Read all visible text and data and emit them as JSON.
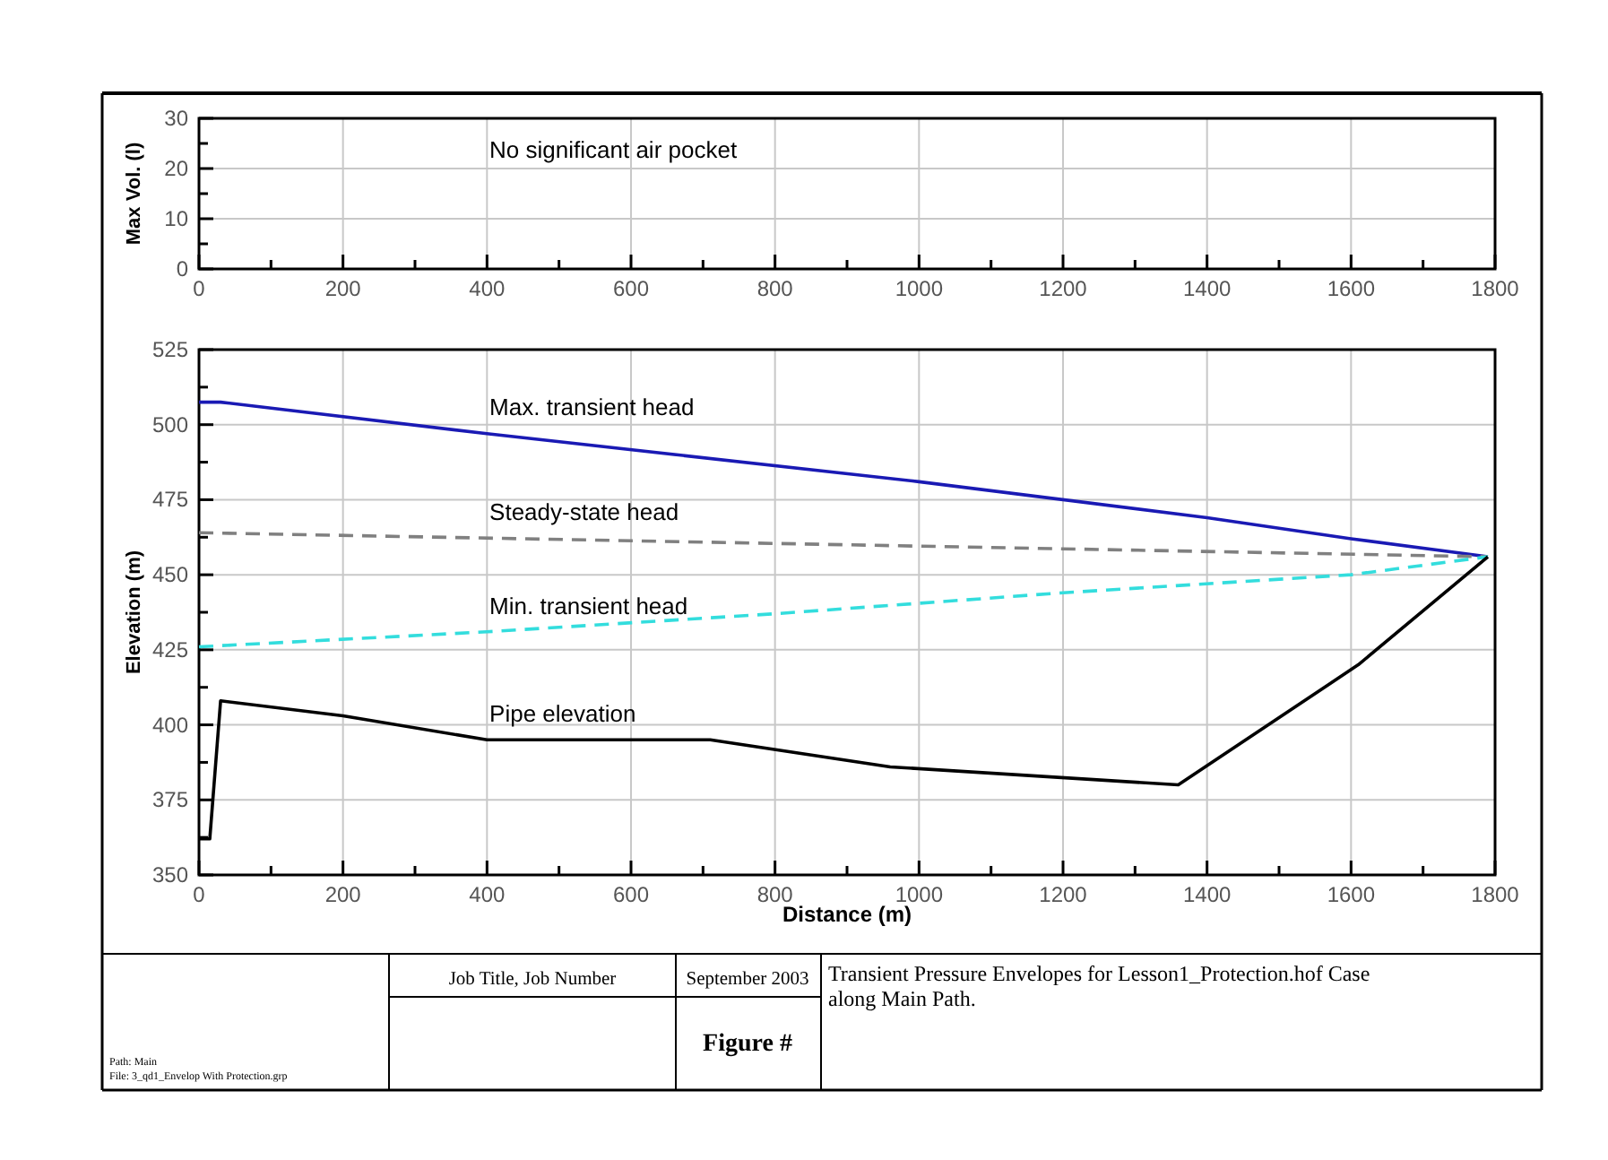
{
  "chart_data": [
    {
      "type": "line",
      "ylabel": "Max Vol. (l)",
      "xlim": [
        0,
        1800
      ],
      "ylim": [
        0,
        30
      ],
      "xticks": [
        0,
        {
          "value": 100,
          "label": null
        },
        200,
        {
          "value": 300,
          "label": null
        },
        400,
        {
          "value": 500,
          "label": null
        },
        600,
        {
          "value": 700,
          "label": null
        },
        800,
        {
          "value": 900,
          "label": null
        },
        1000,
        {
          "value": 1100,
          "label": null
        },
        1200,
        {
          "value": 1300,
          "label": null
        },
        1400,
        {
          "value": 1500,
          "label": null
        },
        1600,
        {
          "value": 1700,
          "label": null
        },
        1800
      ],
      "yticks": [
        0,
        {
          "value": 5,
          "label": null
        },
        10,
        {
          "value": 15,
          "label": null
        },
        20,
        {
          "value": 25,
          "label": null
        },
        30
      ],
      "grid": true,
      "annotations": [
        "No significant air pocket"
      ]
    },
    {
      "type": "line",
      "xlabel": "Distance (m)",
      "ylabel": "Elevation (m)",
      "xlim": [
        0,
        1800
      ],
      "ylim": [
        350,
        525
      ],
      "xticks": [
        0,
        {
          "value": 100,
          "label": null
        },
        200,
        {
          "value": 300,
          "label": null
        },
        400,
        {
          "value": 500,
          "label": null
        },
        600,
        {
          "value": 700,
          "label": null
        },
        800,
        {
          "value": 900,
          "label": null
        },
        1000,
        {
          "value": 1100,
          "label": null
        },
        1200,
        {
          "value": 1300,
          "label": null
        },
        1400,
        {
          "value": 1500,
          "label": null
        },
        1600,
        {
          "value": 1700,
          "label": null
        },
        1800
      ],
      "yticks": [
        350,
        {
          "value": 362.5,
          "label": null
        },
        375,
        {
          "value": 387.5,
          "label": null
        },
        400,
        {
          "value": 412.5,
          "label": null
        },
        425,
        {
          "value": 437.5,
          "label": null
        },
        450,
        {
          "value": 462.5,
          "label": null
        },
        475,
        {
          "value": 487.5,
          "label": null
        },
        500,
        {
          "value": 512.5,
          "label": null
        },
        525
      ],
      "grid": true,
      "series": [
        {
          "name": "Max. transient head",
          "color": "#1a1ab4",
          "line_style": "solid",
          "x": [
            0,
            30,
            400,
            1000,
            1400,
            1600,
            1790
          ],
          "values": [
            507.5,
            507.5,
            497,
            481,
            469,
            462,
            456
          ]
        },
        {
          "name": "Steady-state head",
          "color": "#808080",
          "line_style": "dashed",
          "x": [
            0,
            1790
          ],
          "values": [
            464,
            456
          ]
        },
        {
          "name": "Min. transient head",
          "color": "#33dddd",
          "line_style": "dashed",
          "x": [
            0,
            400,
            800,
            1200,
            1600,
            1790
          ],
          "values": [
            426,
            431,
            437,
            444,
            450,
            456
          ]
        },
        {
          "name": "Pipe elevation",
          "color": "#000000",
          "line_style": "solid",
          "x": [
            0,
            15,
            30,
            200,
            400,
            710,
            960,
            1360,
            1610,
            1790
          ],
          "values": [
            362,
            362,
            408,
            403,
            395,
            395,
            386,
            380,
            420,
            456
          ]
        }
      ],
      "annotations": [
        "Job Title, Job Number",
        "September 2003",
        "Figure #",
        "Transient Pressure Envelopes for Lesson1_Protection.hof Case along Main Path.",
        "Path: Main",
        "File: 3_qd1_Envelop With Protection.grp"
      ]
    }
  ]
}
